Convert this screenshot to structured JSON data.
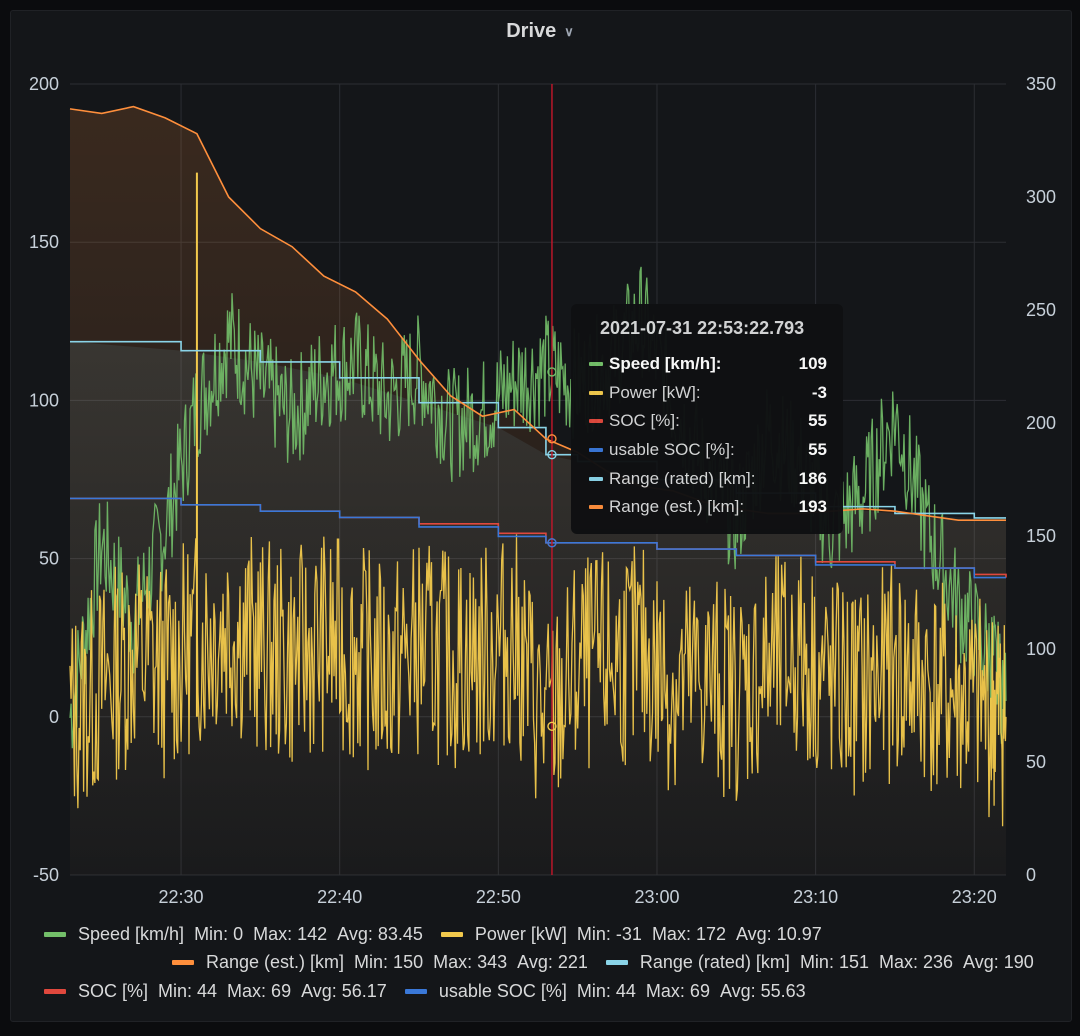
{
  "panel": {
    "title": "Drive"
  },
  "colors": {
    "speed": "#73bf69",
    "power": "#f2c94c",
    "soc": "#e0483d",
    "usable_soc": "#3a78d8",
    "range_rated": "#8ad4e8",
    "range_est": "#ff8f3c",
    "cursor": "#c4162a"
  },
  "tooltip": {
    "time": "2021-07-31 22:53:22.793",
    "rows": [
      {
        "name": "Speed [km/h]:",
        "value": "109",
        "color": "#73bf69",
        "active": true
      },
      {
        "name": "Power [kW]:",
        "value": "-3",
        "color": "#f2c94c"
      },
      {
        "name": "SOC [%]:",
        "value": "55",
        "color": "#e0483d"
      },
      {
        "name": "usable SOC [%]:",
        "value": "55",
        "color": "#3a78d8"
      },
      {
        "name": "Range (rated) [km]:",
        "value": "186",
        "color": "#8ad4e8"
      },
      {
        "name": "Range (est.) [km]:",
        "value": "193",
        "color": "#ff8f3c"
      }
    ]
  },
  "legend": {
    "speed": {
      "name": "Speed [km/h]",
      "min": "Min: 0",
      "max": "Max: 142",
      "avg": "Avg: 83.45"
    },
    "power": {
      "name": "Power [kW]",
      "min": "Min: -31",
      "max": "Max: 172",
      "avg": "Avg: 10.97"
    },
    "range_est": {
      "name": "Range (est.) [km]",
      "min": "Min: 150",
      "max": "Max: 343",
      "avg": "Avg: 221"
    },
    "range_rated": {
      "name": "Range (rated) [km]",
      "min": "Min: 151",
      "max": "Max: 236",
      "avg": "Avg: 190"
    },
    "soc": {
      "name": "SOC [%]",
      "min": "Min: 44",
      "max": "Max: 69",
      "avg": "Avg: 56.17"
    },
    "usable_soc": {
      "name": "usable SOC [%]",
      "min": "Min: 44",
      "max": "Max: 69",
      "avg": "Avg: 55.63"
    }
  },
  "chart_data": {
    "type": "line",
    "x_ticks": [
      "22:30",
      "22:40",
      "22:50",
      "23:00",
      "23:10",
      "23:20"
    ],
    "x_range": [
      "22:23",
      "23:22"
    ],
    "y_left": {
      "ticks": [
        200,
        150,
        100,
        50,
        0,
        -50
      ],
      "range": [
        -50,
        200
      ]
    },
    "y_right": {
      "ticks": [
        350,
        300,
        250,
        200,
        150,
        100,
        50,
        0
      ],
      "range": [
        0,
        350
      ]
    },
    "cursor_time": "22:53:22.793",
    "grid": true,
    "legend_position": "bottom",
    "series": [
      {
        "name": "Speed [km/h]",
        "axis": "left",
        "color": "#73bf69",
        "t": [
          "22:23",
          "22:25",
          "22:27",
          "22:29",
          "22:31",
          "22:33",
          "22:35",
          "22:37",
          "22:39",
          "22:41",
          "22:43",
          "22:45",
          "22:47",
          "22:49",
          "22:51",
          "22:53",
          "22:55",
          "22:57",
          "22:59",
          "23:01",
          "23:03",
          "23:05",
          "23:07",
          "23:09",
          "23:11",
          "23:13",
          "23:15",
          "23:17",
          "23:19",
          "23:21",
          "23:22"
        ],
        "values": [
          0,
          55,
          30,
          60,
          98,
          120,
          105,
          95,
          108,
          112,
          100,
          110,
          92,
          96,
          106,
          110,
          105,
          112,
          126,
          100,
          78,
          62,
          90,
          80,
          60,
          70,
          95,
          60,
          35,
          20,
          5
        ]
      },
      {
        "name": "Power [kW]",
        "axis": "left",
        "color": "#f2c94c",
        "t": [
          "22:23",
          "22:25",
          "22:27",
          "22:29",
          "22:31",
          "22:33",
          "22:35",
          "22:37",
          "22:39",
          "22:41",
          "22:43",
          "22:45",
          "22:47",
          "22:49",
          "22:51",
          "22:53",
          "22:55",
          "22:57",
          "22:59",
          "23:01",
          "23:03",
          "23:05",
          "23:07",
          "23:09",
          "23:11",
          "23:13",
          "23:15",
          "23:17",
          "23:19",
          "23:21",
          "23:22"
        ],
        "values": [
          0,
          10,
          20,
          15,
          25,
          30,
          22,
          18,
          24,
          20,
          15,
          22,
          18,
          20,
          25,
          -3,
          15,
          18,
          20,
          10,
          12,
          8,
          15,
          20,
          10,
          8,
          15,
          10,
          5,
          2,
          0
        ],
        "peaks": [
          [
            "22:31",
            172
          ]
        ]
      },
      {
        "name": "Range (est.) [km]",
        "axis": "right",
        "color": "#ff8f3c",
        "t": [
          "22:23",
          "22:25",
          "22:27",
          "22:29",
          "22:31",
          "22:33",
          "22:35",
          "22:37",
          "22:39",
          "22:41",
          "22:43",
          "22:45",
          "22:47",
          "22:49",
          "22:51",
          "22:53",
          "22:55",
          "22:57",
          "22:59",
          "23:01",
          "23:03",
          "23:05",
          "23:07",
          "23:09",
          "23:11",
          "23:13",
          "23:15",
          "23:17",
          "23:19",
          "23:21",
          "23:22"
        ],
        "values": [
          339,
          337,
          340,
          335,
          328,
          300,
          286,
          278,
          265,
          258,
          246,
          228,
          212,
          203,
          206,
          193,
          187,
          178,
          172,
          170,
          165,
          162,
          160,
          160,
          161,
          162,
          161,
          159,
          157,
          157,
          157
        ]
      },
      {
        "name": "Range (rated) [km]",
        "axis": "right",
        "color": "#8ad4e8",
        "t": [
          "22:23",
          "22:30",
          "22:35",
          "22:40",
          "22:45",
          "22:50",
          "22:53",
          "22:55",
          "23:00",
          "23:05",
          "23:10",
          "23:15",
          "23:20",
          "23:22"
        ],
        "values": [
          236,
          232,
          227,
          220,
          209,
          198,
          186,
          183,
          175,
          169,
          163,
          160,
          158,
          158
        ]
      },
      {
        "name": "SOC [%]",
        "axis": "right",
        "color": "#e0483d",
        "t": [
          "22:23",
          "22:30",
          "22:35",
          "22:40",
          "22:45",
          "22:50",
          "22:53",
          "22:55",
          "23:00",
          "23:05",
          "23:10",
          "23:15",
          "23:20",
          "23:22"
        ],
        "values": [
          69,
          67,
          65,
          63,
          61,
          58,
          55,
          55,
          53,
          51,
          49,
          47,
          45,
          44
        ]
      },
      {
        "name": "usable SOC [%]",
        "axis": "right",
        "color": "#3a78d8",
        "t": [
          "22:23",
          "22:30",
          "22:35",
          "22:40",
          "22:45",
          "22:50",
          "22:53",
          "22:55",
          "23:00",
          "23:05",
          "23:10",
          "23:15",
          "23:20",
          "23:22"
        ],
        "values": [
          69,
          67,
          65,
          63,
          60,
          57,
          55,
          55,
          53,
          51,
          48,
          47,
          44,
          44
        ]
      }
    ]
  }
}
